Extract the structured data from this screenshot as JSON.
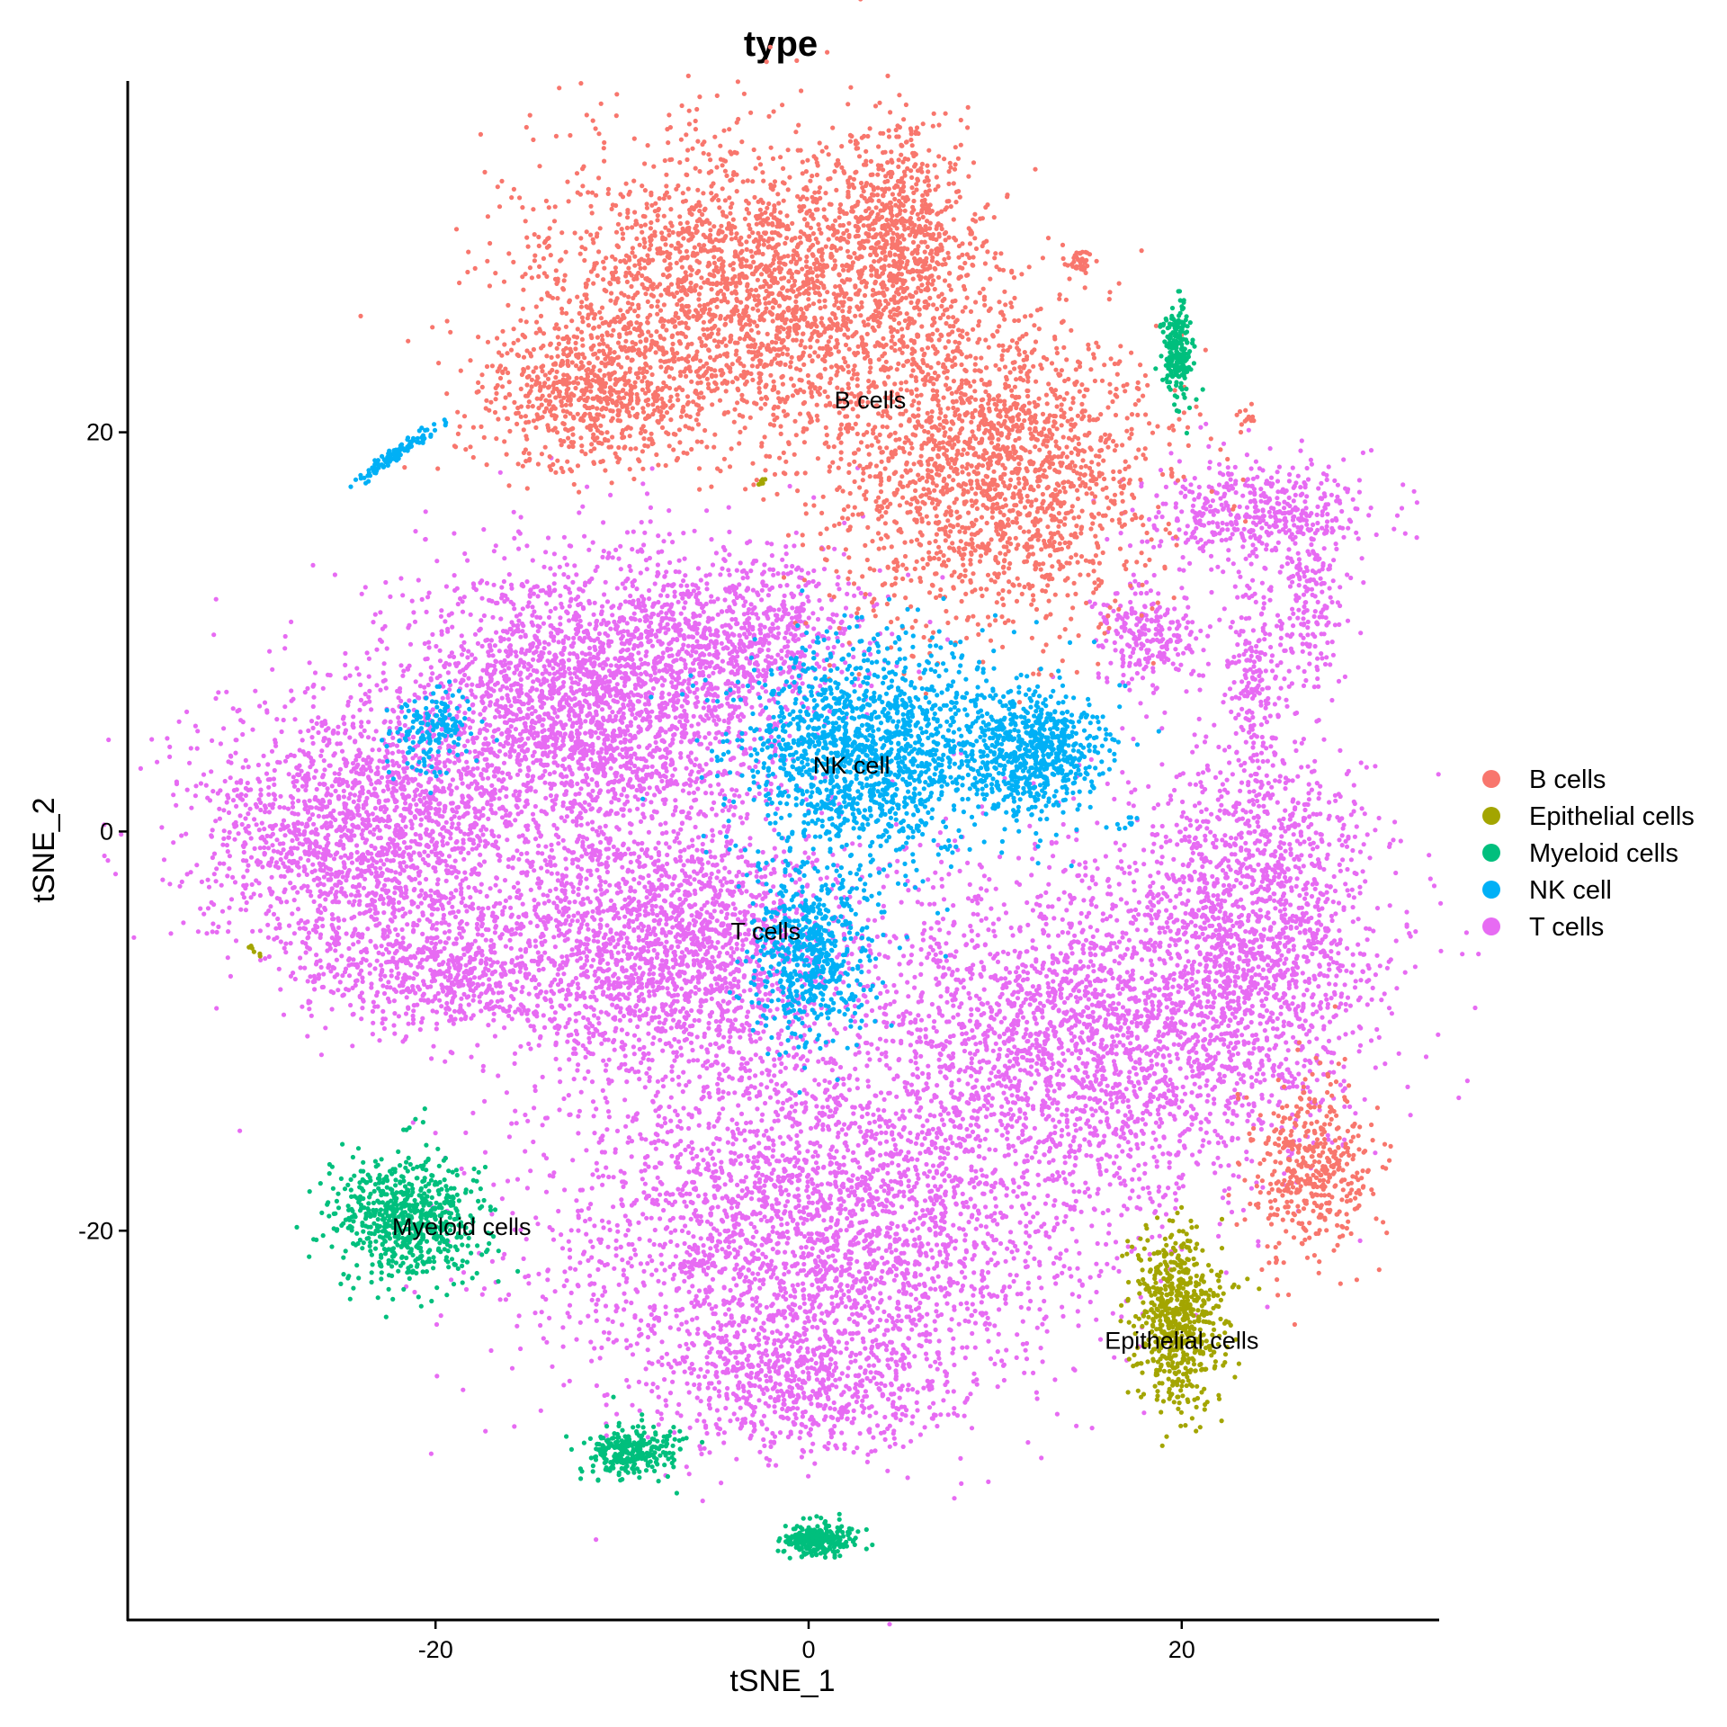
{
  "chart_data": {
    "type": "scatter",
    "title": "type",
    "xlabel": "tSNE_1",
    "ylabel": "tSNE_2",
    "xlim": [
      -36.5,
      33.8
    ],
    "ylim": [
      -39.5,
      37.6
    ],
    "x_ticks": [
      -20,
      0,
      20
    ],
    "y_ticks": [
      -20,
      0,
      20
    ],
    "grid": false,
    "legend": {
      "position": "right",
      "entries": [
        {
          "label": "B cells",
          "color": "#F8766D"
        },
        {
          "label": "Epithelial cells",
          "color": "#A3A500"
        },
        {
          "label": "Myeloid cells",
          "color": "#00BF7D"
        },
        {
          "label": "NK cell",
          "color": "#00B0F6"
        },
        {
          "label": "T cells",
          "color": "#E76BF3"
        }
      ]
    },
    "cluster_labels": [
      {
        "text": "B cells",
        "x": 3.3,
        "y": 21.6
      },
      {
        "text": "NK cell",
        "x": 2.3,
        "y": 3.3
      },
      {
        "text": "T cells",
        "x": -2.3,
        "y": -5.0
      },
      {
        "text": "Myeloid cells",
        "x": -18.6,
        "y": -19.8
      },
      {
        "text": "Epithelial cells",
        "x": 20.0,
        "y": -25.5
      }
    ],
    "series": [
      {
        "name": "T cells",
        "color": "#E76BF3",
        "clusters": [
          {
            "cx": -12,
            "cy": 6,
            "rx": 9,
            "ry": 7,
            "n": 2600
          },
          {
            "cx": -24,
            "cy": 0,
            "rx": 8,
            "ry": 6,
            "n": 1800
          },
          {
            "cx": -8,
            "cy": -6,
            "rx": 9,
            "ry": 6,
            "n": 2000
          },
          {
            "cx": 0,
            "cy": -20,
            "rx": 13,
            "ry": 8,
            "n": 3000
          },
          {
            "cx": 15,
            "cy": -10,
            "rx": 12,
            "ry": 8,
            "n": 2600
          },
          {
            "cx": 24,
            "cy": -4,
            "rx": 6,
            "ry": 8,
            "n": 1400
          },
          {
            "cx": -4,
            "cy": 10,
            "rx": 7,
            "ry": 4,
            "n": 800
          },
          {
            "cx": 0,
            "cy": -28,
            "rx": 7,
            "ry": 3,
            "n": 600
          },
          {
            "cx": -20,
            "cy": -7,
            "rx": 6,
            "ry": 3,
            "n": 600
          },
          {
            "cx": 24,
            "cy": 16,
            "rx": 6,
            "ry": 2.5,
            "n": 450
          },
          {
            "cx": 18,
            "cy": 10,
            "rx": 2.5,
            "ry": 2.5,
            "n": 250
          },
          {
            "cx": 24,
            "cy": 8,
            "rx": 1.5,
            "ry": 6,
            "n": 220
          },
          {
            "cx": 27,
            "cy": 12,
            "rx": 1.5,
            "ry": 5,
            "n": 180
          }
        ]
      },
      {
        "name": "B cells",
        "color": "#F8766D",
        "clusters": [
          {
            "cx": -3,
            "cy": 27,
            "rx": 11,
            "ry": 7,
            "n": 2600
          },
          {
            "cx": 10,
            "cy": 18,
            "rx": 8,
            "ry": 7,
            "n": 1900
          },
          {
            "cx": -12,
            "cy": 22,
            "rx": 5,
            "ry": 3.5,
            "n": 600
          },
          {
            "cx": 5,
            "cy": 30,
            "rx": 3,
            "ry": 5,
            "n": 500
          },
          {
            "cx": 27,
            "cy": -17,
            "rx": 3,
            "ry": 4,
            "n": 450
          },
          {
            "cx": 14.5,
            "cy": 28.5,
            "rx": 0.7,
            "ry": 0.6,
            "n": 40
          },
          {
            "cx": 23.5,
            "cy": 20.5,
            "rx": 0.5,
            "ry": 0.5,
            "n": 12
          }
        ]
      },
      {
        "name": "NK cell",
        "color": "#00B0F6",
        "clusters": [
          {
            "cx": 3,
            "cy": 4,
            "rx": 6,
            "ry": 5,
            "n": 1500
          },
          {
            "cx": 12,
            "cy": 4,
            "rx": 3.5,
            "ry": 3,
            "n": 700
          },
          {
            "cx": 0,
            "cy": -6,
            "rx": 3,
            "ry": 4,
            "n": 600
          },
          {
            "cx": -20,
            "cy": 5,
            "rx": 2,
            "ry": 1.8,
            "n": 160
          },
          {
            "cx": 17,
            "cy": 0.5,
            "rx": 0.6,
            "ry": 0.4,
            "n": 10
          },
          {
            "cx": -22,
            "cy": 19,
            "rx": 2.3,
            "ry": 0.3,
            "n": 120,
            "angle": 33
          }
        ]
      },
      {
        "name": "Myeloid cells",
        "color": "#00BF7D",
        "clusters": [
          {
            "cx": -21.5,
            "cy": -19.5,
            "rx": 3.5,
            "ry": 3,
            "n": 700
          },
          {
            "cx": -9.5,
            "cy": -31,
            "rx": 2.2,
            "ry": 1.2,
            "n": 280
          },
          {
            "cx": 0.5,
            "cy": -35.5,
            "rx": 1.8,
            "ry": 0.7,
            "n": 260
          },
          {
            "cx": 19.8,
            "cy": 24,
            "rx": 0.7,
            "ry": 2,
            "n": 220
          }
        ]
      },
      {
        "name": "Epithelial cells",
        "color": "#A3A500",
        "clusters": [
          {
            "cx": 19.8,
            "cy": -24.5,
            "rx": 2.2,
            "ry": 4,
            "n": 650
          },
          {
            "cx": -29.8,
            "cy": -5.8,
            "rx": 0.3,
            "ry": 0.3,
            "n": 6
          },
          {
            "cx": -2.3,
            "cy": 17.5,
            "rx": 0.4,
            "ry": 0.2,
            "n": 6
          }
        ]
      }
    ]
  }
}
